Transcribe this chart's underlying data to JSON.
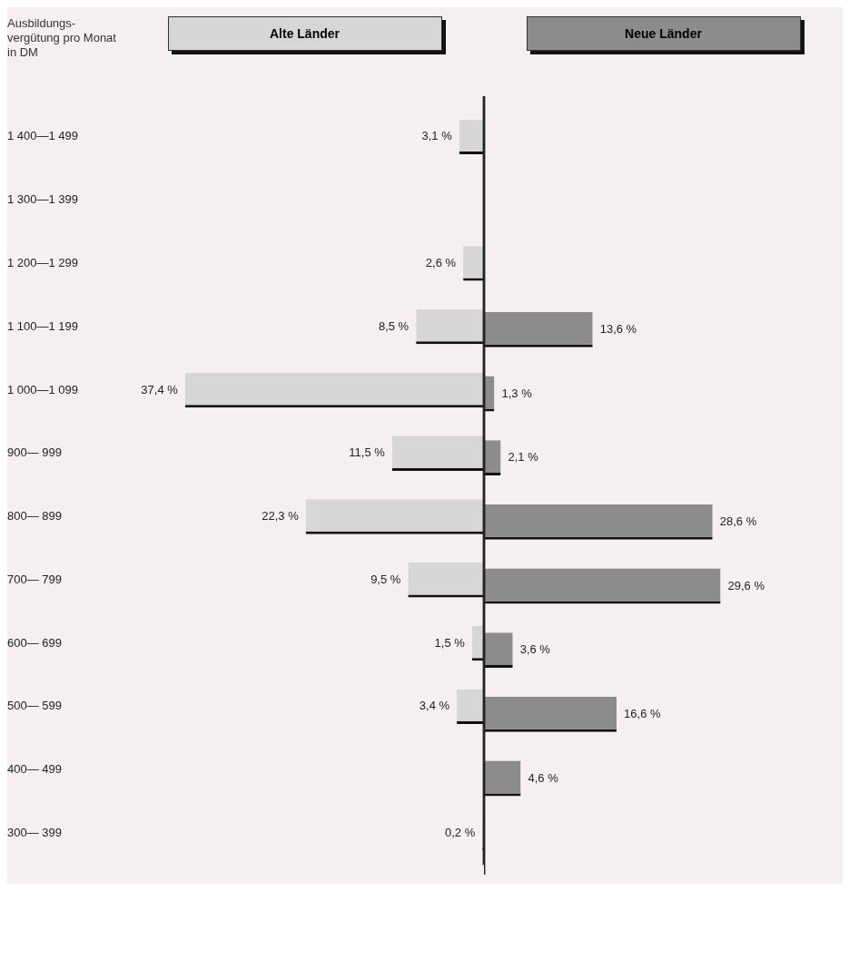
{
  "chart_data": [
    {
      "type": "bar",
      "orientation": "horizontal",
      "ylabel": "Ausbildungs-vergütung pro Monat in DM",
      "legend": "top",
      "tick_labels": "y",
      "categories": [
        "1 400—1 499",
        "1 300—1 399",
        "1 200—1 299",
        "1 100—1 199",
        "1 000—1 099",
        "900— 999",
        "800— 899",
        "700— 799",
        "600— 699",
        "500— 599",
        "400— 499",
        "300— 399"
      ],
      "series": [
        {
          "name": "Alte Länder",
          "color": "#d6d6d6",
          "values": [
            3.1,
            null,
            2.6,
            8.5,
            37.4,
            11.5,
            22.3,
            9.5,
            1.5,
            3.4,
            null,
            0.2
          ],
          "value_labels": [
            "3,1 %",
            null,
            "2,6 %",
            "8,5 %",
            "37,4 %",
            "11,5 %",
            "22,3 %",
            "9,5 %",
            "1,5 %",
            "3,4 %",
            null,
            "0,2 %"
          ]
        }
      ]
    },
    {
      "type": "bar",
      "orientation": "horizontal",
      "legend": "top",
      "tick_labels": false,
      "series": [
        {
          "name": "Neue Länder",
          "color": "#8c8c8c",
          "values": [
            null,
            null,
            null,
            13.6,
            1.3,
            2.1,
            28.6,
            29.6,
            3.6,
            16.6,
            4.6,
            null
          ],
          "value_labels": [
            null,
            null,
            null,
            "13,6 %",
            "1,3 %",
            "2,1 %",
            "28,6 %",
            "29,6 %",
            "3,6 %",
            "16,6 %",
            "4,6 %",
            null
          ]
        }
      ]
    }
  ]
}
